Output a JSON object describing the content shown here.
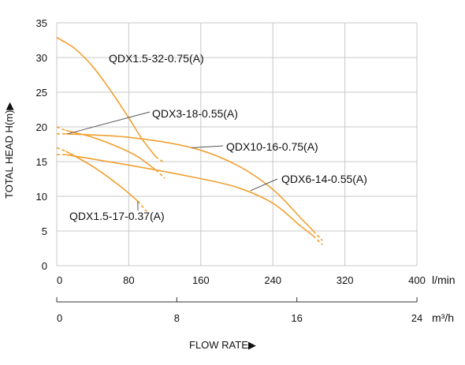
{
  "chart_data": {
    "type": "line",
    "title": "",
    "xlabel": "FLOW RATE▶",
    "ylabel": "TOTAL HEAD H(m)▶",
    "x_unit_primary": "l/min",
    "x_unit_secondary": "m³/h",
    "xlim": [
      0,
      400
    ],
    "ylim": [
      0,
      35
    ],
    "x_ticks": [
      "0",
      "80",
      "160",
      "240",
      "320",
      "400"
    ],
    "x2_ticks": [
      "0",
      "8",
      "16",
      "24"
    ],
    "y_ticks": [
      "0",
      "5",
      "10",
      "15",
      "20",
      "25",
      "30",
      "35"
    ],
    "grid": true,
    "colors": {
      "curve": "#f0a030",
      "grid": "#c8c8c8",
      "leader": "#555555",
      "axis": "#333333"
    },
    "series": [
      {
        "name": "QDX1.5-32-0.75(A)",
        "x": [
          0,
          20,
          40,
          60,
          80,
          95,
          110
        ],
        "y": [
          32.9,
          31.3,
          28.7,
          25.2,
          21.3,
          18.2,
          15.7
        ],
        "x_start_dashed": 10,
        "x_end_dashed": 120,
        "y_end_dashed": 14.8
      },
      {
        "name": "QDX3-18-0.55(A)",
        "x": [
          10,
          40,
          70,
          90,
          110
        ],
        "y": [
          19.5,
          18.5,
          17.0,
          15.7,
          13.8
        ],
        "x_end_dashed": 120,
        "y_end_dashed": 12.6
      },
      {
        "name": "QDX10-16-0.75(A)",
        "x": [
          10,
          80,
          150,
          200,
          240,
          270,
          285
        ],
        "y": [
          19.0,
          18.5,
          17.0,
          14.5,
          11.0,
          7.0,
          5.0
        ],
        "x_end_dashed": 295,
        "y_end_dashed": 3.6
      },
      {
        "name": "QDX6-14-0.55(A)",
        "x": [
          10,
          80,
          150,
          200,
          240,
          270,
          285
        ],
        "y": [
          16.0,
          14.5,
          12.8,
          11.3,
          9.0,
          5.8,
          4.3
        ],
        "x_end_dashed": 295,
        "y_end_dashed": 3.0
      },
      {
        "name": "QDX1.5-17-0.37(A)",
        "x": [
          10,
          40,
          70,
          90
        ],
        "y": [
          16.5,
          14.3,
          11.5,
          9.3
        ],
        "x_end_dashed": 100,
        "y_end_dashed": 7.8
      }
    ],
    "annotations": [
      {
        "text": "QDX1.5-32-0.75(A)"
      },
      {
        "text": "QDX3-18-0.55(A)"
      },
      {
        "text": "QDX10-16-0.75(A)"
      },
      {
        "text": "QDX6-14-0.55(A)"
      },
      {
        "text": "QDX1.5-17-0.37(A)"
      }
    ]
  }
}
